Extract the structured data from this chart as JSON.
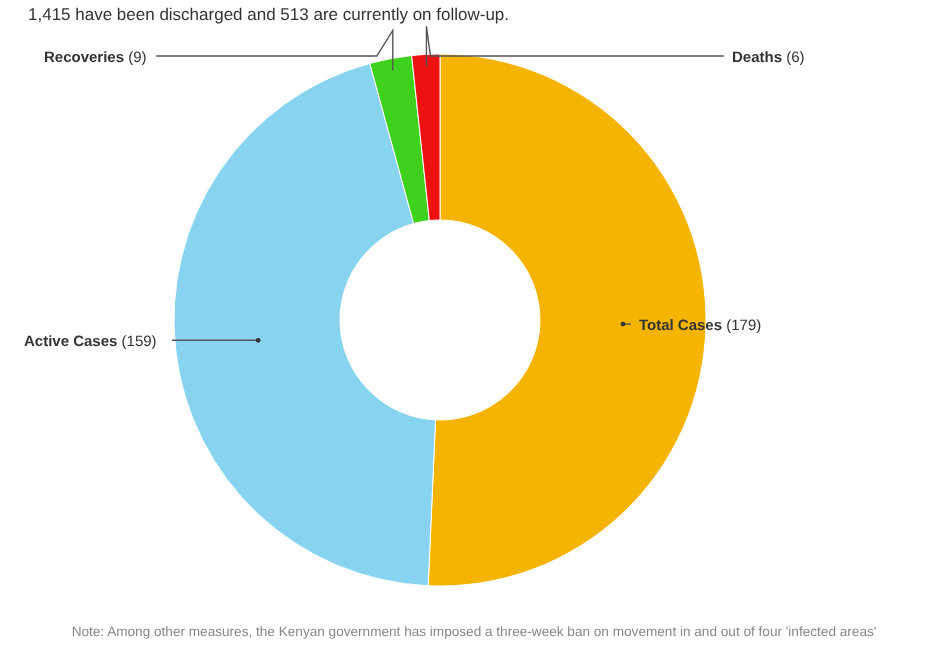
{
  "chart_data": {
    "type": "donut",
    "subtitle": "1,415 have been discharged and 513 are currently on follow-up.",
    "categories": [
      "Total Cases",
      "Active Cases",
      "Recoveries",
      "Deaths"
    ],
    "values": [
      179,
      159,
      9,
      6
    ],
    "colors": [
      "#f5b400",
      "#87d3f0",
      "#3fd21d",
      "#ee1111"
    ],
    "value_labels": [
      "(179)",
      "(159)",
      "(9)",
      "(6)"
    ],
    "legend": false,
    "annotations": [
      "Note: Among other measures, the Kenyan government has imposed a three-week ban on movement in and out of four 'infected areas'"
    ]
  }
}
